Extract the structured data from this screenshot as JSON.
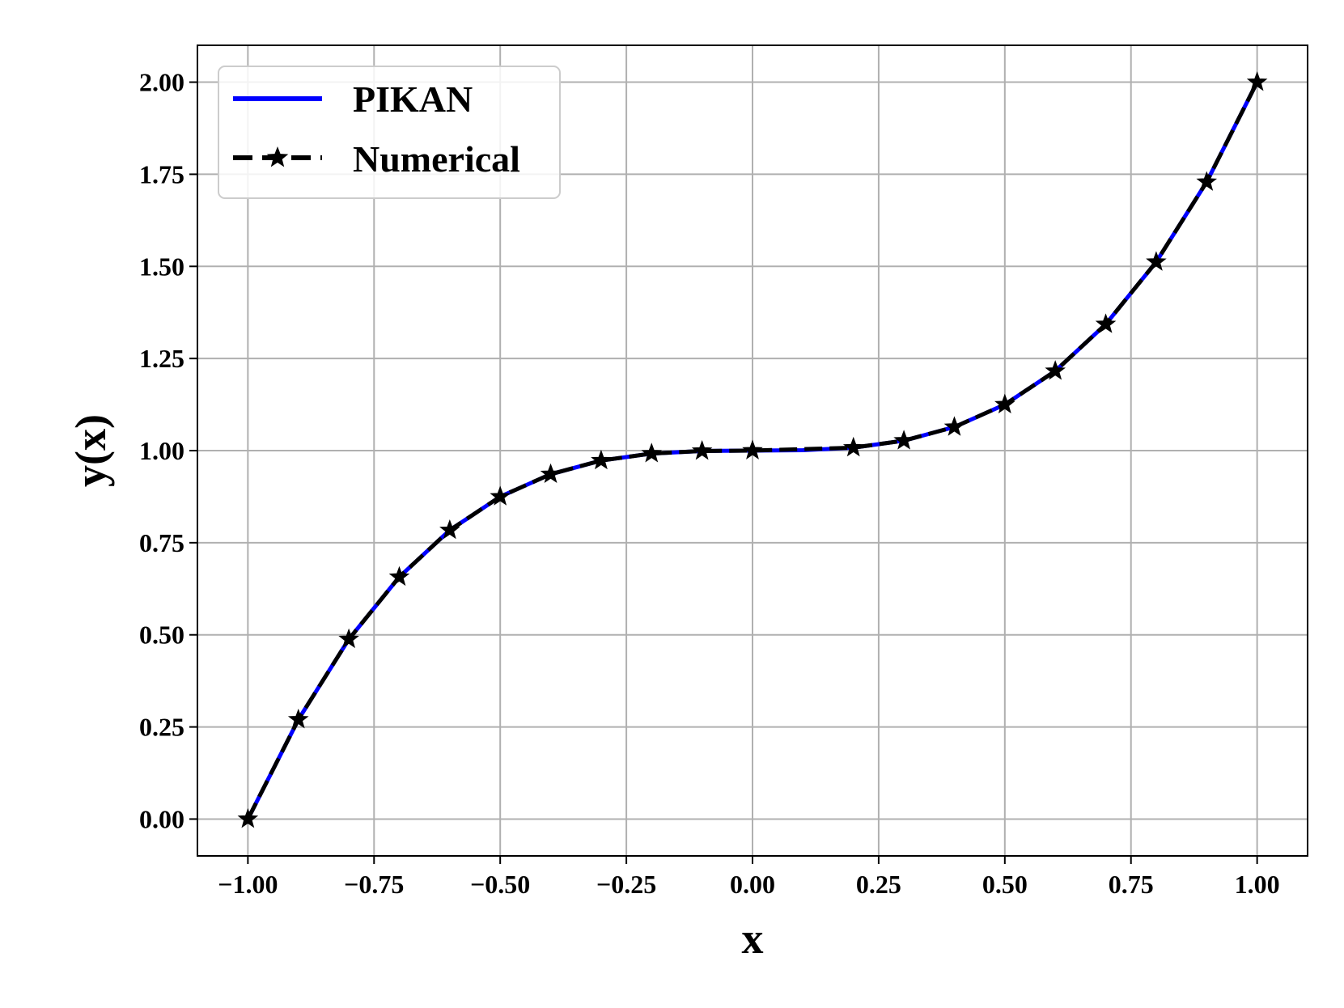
{
  "chart_data": {
    "type": "line",
    "xlabel": "x",
    "ylabel": "y(x)",
    "xlim": [
      -1.1,
      1.1
    ],
    "ylim": [
      -0.1,
      2.1
    ],
    "grid": true,
    "legend_position": "top-left",
    "x_ticks": [
      -1.0,
      -0.75,
      -0.5,
      -0.25,
      0.0,
      0.25,
      0.5,
      0.75,
      1.0
    ],
    "x_tick_labels": [
      "−1.00",
      "−0.75",
      "−0.50",
      "−0.25",
      "0.00",
      "0.25",
      "0.50",
      "0.75",
      "1.00"
    ],
    "y_ticks": [
      0.0,
      0.25,
      0.5,
      0.75,
      1.0,
      1.25,
      1.5,
      1.75,
      2.0
    ],
    "y_tick_labels": [
      "0.00",
      "0.25",
      "0.50",
      "0.75",
      "1.00",
      "1.25",
      "1.50",
      "1.75",
      "2.00"
    ],
    "series": [
      {
        "name": "PIKAN",
        "style": "solid",
        "color": "#0000ff",
        "x": [
          -1.0,
          -0.9,
          -0.8,
          -0.7,
          -0.6,
          -0.5,
          -0.4,
          -0.3,
          -0.2,
          -0.1,
          0.0,
          0.1,
          0.2,
          0.3,
          0.4,
          0.5,
          0.6,
          0.7,
          0.8,
          0.9,
          1.0
        ],
        "y": [
          0.0,
          0.27,
          0.488,
          0.657,
          0.784,
          0.875,
          0.936,
          0.973,
          0.992,
          0.999,
          1.0,
          1.001,
          1.008,
          1.027,
          1.064,
          1.125,
          1.216,
          1.343,
          1.512,
          1.729,
          2.0
        ]
      },
      {
        "name": "Numerical",
        "style": "dashed",
        "marker": "star",
        "color": "#000000",
        "x": [
          -1.0,
          -0.9,
          -0.8,
          -0.7,
          -0.6,
          -0.5,
          -0.4,
          -0.3,
          -0.2,
          -0.1,
          0.0,
          0.2,
          0.3,
          0.4,
          0.5,
          0.6,
          0.7,
          0.8,
          0.9,
          1.0
        ],
        "y": [
          0.0,
          0.27,
          0.488,
          0.657,
          0.784,
          0.875,
          0.936,
          0.973,
          0.992,
          0.999,
          1.0,
          1.008,
          1.027,
          1.064,
          1.125,
          1.216,
          1.343,
          1.512,
          1.729,
          2.0
        ]
      }
    ]
  }
}
